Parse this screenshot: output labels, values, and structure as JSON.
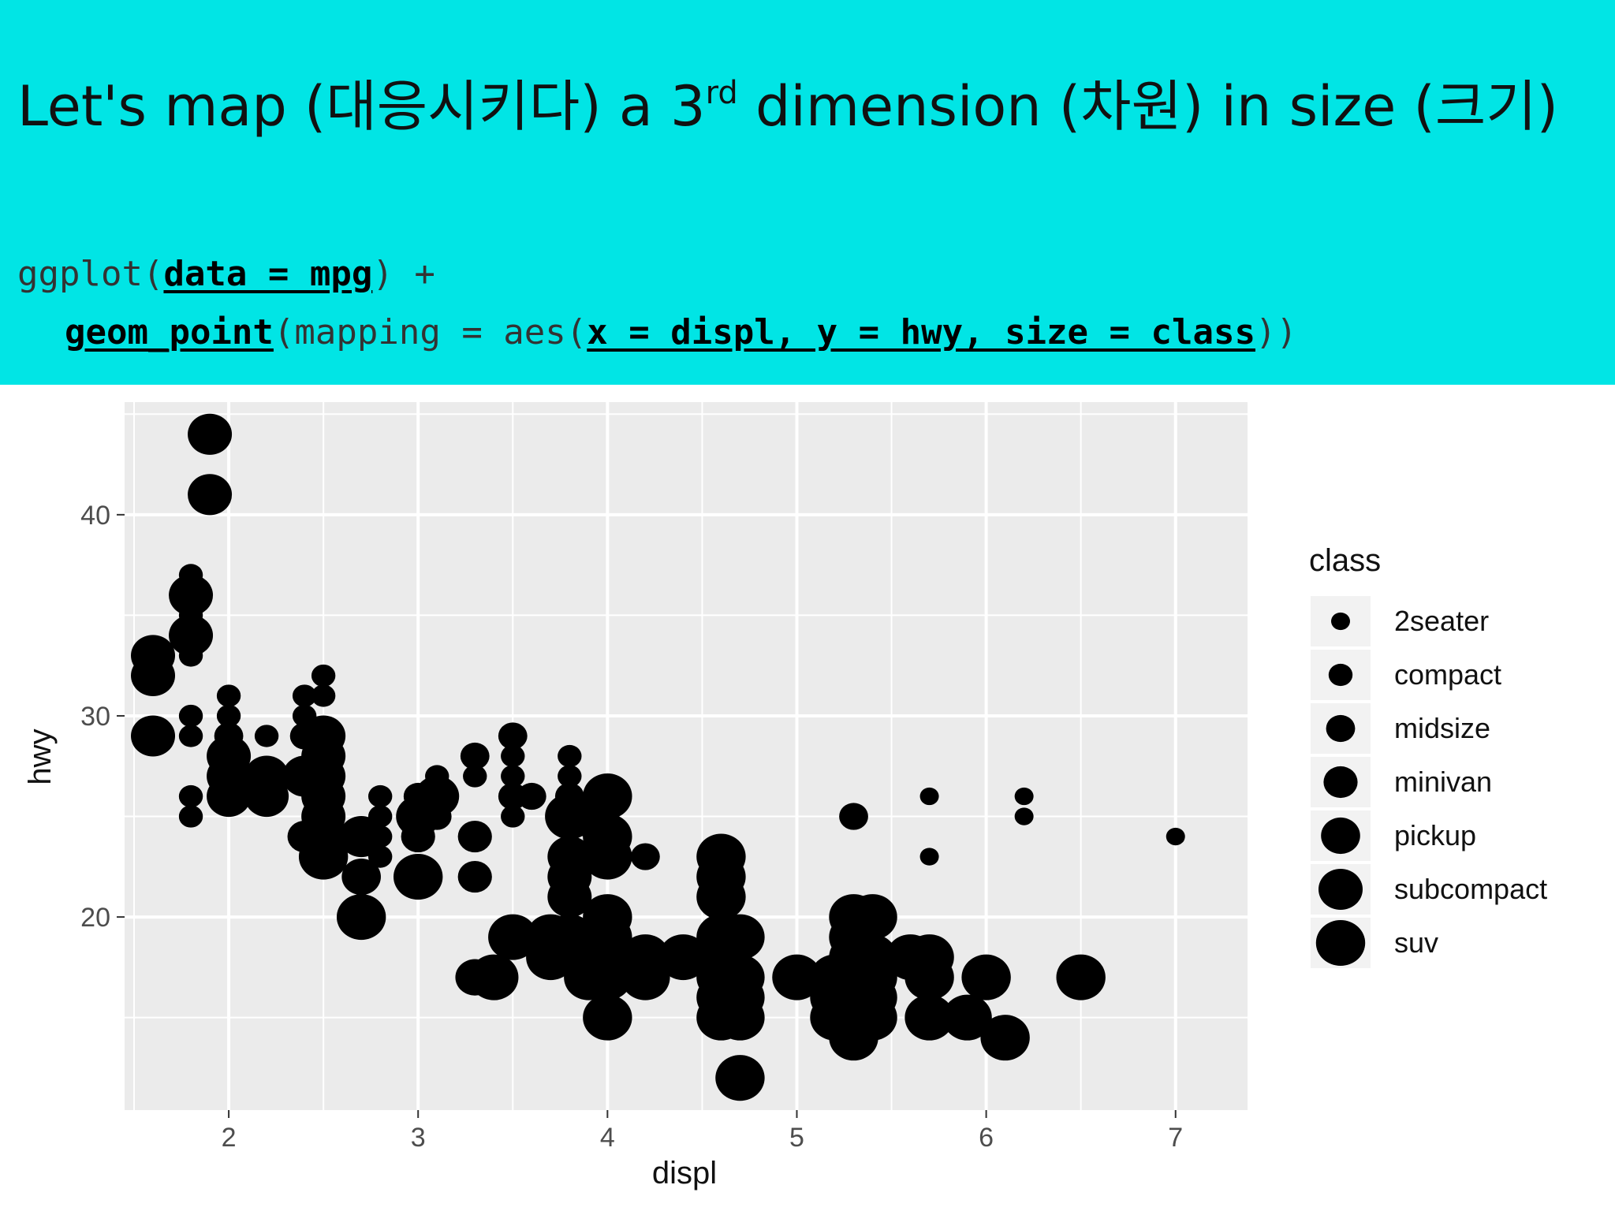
{
  "slide": {
    "title_pre": "Let's map (대응시키다) a 3",
    "title_sup": "rd",
    "title_post": " dimension (차원) in size (크기)",
    "code_line1": {
      "fn": "ggplot",
      "open": "(",
      "arg": "data = mpg",
      "close": ") +"
    },
    "code_line2": {
      "fn": "geom_point",
      "mid": "(mapping = aes(",
      "arg": "x = displ, y = hwy, size = class",
      "close": "))"
    },
    "colors": {
      "header_bg": "#01e5e5",
      "panel_bg": "#ebebeb",
      "point": "#000000"
    }
  },
  "chart_data": {
    "type": "scatter",
    "title": "",
    "xlabel": "displ",
    "ylabel": "hwy",
    "xlim": [
      1.45,
      7.38
    ],
    "ylim": [
      10.4,
      45.6
    ],
    "xticks": [
      2,
      3,
      4,
      5,
      6,
      7
    ],
    "yticks": [
      20,
      30,
      40
    ],
    "x_tick_labels": [
      "2",
      "3",
      "4",
      "5",
      "6",
      "7"
    ],
    "y_tick_labels": [
      "20",
      "30",
      "40"
    ],
    "grid": true,
    "legend": {
      "title": "class",
      "position": "right",
      "categories": [
        "2seater",
        "compact",
        "midsize",
        "minivan",
        "pickup",
        "subcompact",
        "suv"
      ]
    },
    "points": [
      {
        "x": 1.9,
        "y": 44,
        "class": "subcompact"
      },
      {
        "x": 1.9,
        "y": 41,
        "class": "subcompact"
      },
      {
        "x": 1.8,
        "y": 37,
        "class": "compact"
      },
      {
        "x": 1.8,
        "y": 36,
        "class": "subcompact"
      },
      {
        "x": 1.8,
        "y": 35,
        "class": "compact"
      },
      {
        "x": 1.8,
        "y": 34,
        "class": "subcompact"
      },
      {
        "x": 1.8,
        "y": 33,
        "class": "compact"
      },
      {
        "x": 1.6,
        "y": 33,
        "class": "subcompact"
      },
      {
        "x": 1.6,
        "y": 32,
        "class": "subcompact"
      },
      {
        "x": 1.6,
        "y": 29,
        "class": "subcompact"
      },
      {
        "x": 1.8,
        "y": 30,
        "class": "compact"
      },
      {
        "x": 1.8,
        "y": 29,
        "class": "compact"
      },
      {
        "x": 1.8,
        "y": 26,
        "class": "compact"
      },
      {
        "x": 1.8,
        "y": 25,
        "class": "compact"
      },
      {
        "x": 2.0,
        "y": 31,
        "class": "compact"
      },
      {
        "x": 2.0,
        "y": 30,
        "class": "compact"
      },
      {
        "x": 2.0,
        "y": 29,
        "class": "midsize"
      },
      {
        "x": 2.0,
        "y": 28,
        "class": "subcompact"
      },
      {
        "x": 2.0,
        "y": 27,
        "class": "subcompact"
      },
      {
        "x": 2.0,
        "y": 26,
        "class": "subcompact"
      },
      {
        "x": 2.0,
        "y": 28,
        "class": "compact"
      },
      {
        "x": 2.2,
        "y": 29,
        "class": "compact"
      },
      {
        "x": 2.2,
        "y": 27,
        "class": "subcompact"
      },
      {
        "x": 2.2,
        "y": 26,
        "class": "subcompact"
      },
      {
        "x": 2.5,
        "y": 32,
        "class": "compact"
      },
      {
        "x": 2.5,
        "y": 31,
        "class": "compact"
      },
      {
        "x": 2.4,
        "y": 31,
        "class": "compact"
      },
      {
        "x": 2.4,
        "y": 30,
        "class": "compact"
      },
      {
        "x": 2.5,
        "y": 29,
        "class": "subcompact"
      },
      {
        "x": 2.4,
        "y": 29,
        "class": "midsize"
      },
      {
        "x": 2.5,
        "y": 28,
        "class": "subcompact"
      },
      {
        "x": 2.5,
        "y": 27,
        "class": "subcompact"
      },
      {
        "x": 2.4,
        "y": 27,
        "class": "subcompact"
      },
      {
        "x": 2.5,
        "y": 26,
        "class": "subcompact"
      },
      {
        "x": 2.5,
        "y": 25,
        "class": "subcompact"
      },
      {
        "x": 2.4,
        "y": 24,
        "class": "minivan"
      },
      {
        "x": 2.5,
        "y": 24,
        "class": "subcompact"
      },
      {
        "x": 2.5,
        "y": 23,
        "class": "suv"
      },
      {
        "x": 2.7,
        "y": 24,
        "class": "subcompact"
      },
      {
        "x": 2.8,
        "y": 26,
        "class": "compact"
      },
      {
        "x": 2.8,
        "y": 25,
        "class": "compact"
      },
      {
        "x": 2.8,
        "y": 24,
        "class": "compact"
      },
      {
        "x": 2.8,
        "y": 23,
        "class": "compact"
      },
      {
        "x": 2.7,
        "y": 22,
        "class": "pickup"
      },
      {
        "x": 2.7,
        "y": 20,
        "class": "suv"
      },
      {
        "x": 3.0,
        "y": 26,
        "class": "midsize"
      },
      {
        "x": 3.1,
        "y": 27,
        "class": "compact"
      },
      {
        "x": 3.1,
        "y": 26,
        "class": "subcompact"
      },
      {
        "x": 3.0,
        "y": 25,
        "class": "subcompact"
      },
      {
        "x": 3.1,
        "y": 25,
        "class": "midsize"
      },
      {
        "x": 3.0,
        "y": 24,
        "class": "minivan"
      },
      {
        "x": 3.0,
        "y": 22,
        "class": "suv"
      },
      {
        "x": 3.3,
        "y": 28,
        "class": "midsize"
      },
      {
        "x": 3.3,
        "y": 27,
        "class": "compact"
      },
      {
        "x": 3.3,
        "y": 24,
        "class": "minivan"
      },
      {
        "x": 3.3,
        "y": 22,
        "class": "minivan"
      },
      {
        "x": 3.5,
        "y": 29,
        "class": "midsize"
      },
      {
        "x": 3.5,
        "y": 28,
        "class": "compact"
      },
      {
        "x": 3.5,
        "y": 27,
        "class": "compact"
      },
      {
        "x": 3.5,
        "y": 26,
        "class": "midsize"
      },
      {
        "x": 3.6,
        "y": 26,
        "class": "midsize"
      },
      {
        "x": 3.5,
        "y": 25,
        "class": "compact"
      },
      {
        "x": 3.5,
        "y": 19,
        "class": "suv"
      },
      {
        "x": 3.4,
        "y": 17,
        "class": "suv"
      },
      {
        "x": 3.3,
        "y": 17,
        "class": "pickup"
      },
      {
        "x": 3.8,
        "y": 28,
        "class": "compact"
      },
      {
        "x": 3.8,
        "y": 27,
        "class": "compact"
      },
      {
        "x": 3.8,
        "y": 26,
        "class": "midsize"
      },
      {
        "x": 3.8,
        "y": 25,
        "class": "suv"
      },
      {
        "x": 3.9,
        "y": 25,
        "class": "subcompact"
      },
      {
        "x": 3.8,
        "y": 23,
        "class": "subcompact"
      },
      {
        "x": 3.8,
        "y": 22,
        "class": "subcompact"
      },
      {
        "x": 3.8,
        "y": 21,
        "class": "subcompact"
      },
      {
        "x": 3.8,
        "y": 19,
        "class": "suv"
      },
      {
        "x": 3.7,
        "y": 19,
        "class": "suv"
      },
      {
        "x": 3.7,
        "y": 18,
        "class": "suv"
      },
      {
        "x": 4.0,
        "y": 26,
        "class": "suv"
      },
      {
        "x": 4.0,
        "y": 24,
        "class": "suv"
      },
      {
        "x": 4.0,
        "y": 23,
        "class": "suv"
      },
      {
        "x": 4.2,
        "y": 23,
        "class": "midsize"
      },
      {
        "x": 4.0,
        "y": 20,
        "class": "suv"
      },
      {
        "x": 4.0,
        "y": 19,
        "class": "suv"
      },
      {
        "x": 4.0,
        "y": 18,
        "class": "suv"
      },
      {
        "x": 4.0,
        "y": 17,
        "class": "suv"
      },
      {
        "x": 3.9,
        "y": 17,
        "class": "suv"
      },
      {
        "x": 4.2,
        "y": 18,
        "class": "suv"
      },
      {
        "x": 4.2,
        "y": 17,
        "class": "suv"
      },
      {
        "x": 4.0,
        "y": 15,
        "class": "suv"
      },
      {
        "x": 4.4,
        "y": 18,
        "class": "suv"
      },
      {
        "x": 4.6,
        "y": 23,
        "class": "suv"
      },
      {
        "x": 4.6,
        "y": 22,
        "class": "suv"
      },
      {
        "x": 4.6,
        "y": 21,
        "class": "suv"
      },
      {
        "x": 4.6,
        "y": 19,
        "class": "suv"
      },
      {
        "x": 4.7,
        "y": 19,
        "class": "suv"
      },
      {
        "x": 4.6,
        "y": 18,
        "class": "suv"
      },
      {
        "x": 4.7,
        "y": 17,
        "class": "suv"
      },
      {
        "x": 4.6,
        "y": 17,
        "class": "suv"
      },
      {
        "x": 4.6,
        "y": 16,
        "class": "suv"
      },
      {
        "x": 4.7,
        "y": 16,
        "class": "suv"
      },
      {
        "x": 4.6,
        "y": 15,
        "class": "suv"
      },
      {
        "x": 4.7,
        "y": 15,
        "class": "suv"
      },
      {
        "x": 4.7,
        "y": 12,
        "class": "suv"
      },
      {
        "x": 5.0,
        "y": 17,
        "class": "suv"
      },
      {
        "x": 5.2,
        "y": 17,
        "class": "suv"
      },
      {
        "x": 5.2,
        "y": 16,
        "class": "suv"
      },
      {
        "x": 5.2,
        "y": 15,
        "class": "suv"
      },
      {
        "x": 5.3,
        "y": 25,
        "class": "midsize"
      },
      {
        "x": 5.3,
        "y": 20,
        "class": "suv"
      },
      {
        "x": 5.3,
        "y": 19,
        "class": "suv"
      },
      {
        "x": 5.3,
        "y": 18,
        "class": "suv"
      },
      {
        "x": 5.3,
        "y": 17,
        "class": "suv"
      },
      {
        "x": 5.3,
        "y": 16,
        "class": "suv"
      },
      {
        "x": 5.3,
        "y": 15,
        "class": "suv"
      },
      {
        "x": 5.3,
        "y": 14,
        "class": "suv"
      },
      {
        "x": 5.4,
        "y": 20,
        "class": "suv"
      },
      {
        "x": 5.4,
        "y": 18,
        "class": "suv"
      },
      {
        "x": 5.4,
        "y": 17,
        "class": "suv"
      },
      {
        "x": 5.4,
        "y": 16,
        "class": "suv"
      },
      {
        "x": 5.4,
        "y": 15,
        "class": "suv"
      },
      {
        "x": 5.7,
        "y": 26,
        "class": "2seater"
      },
      {
        "x": 5.7,
        "y": 23,
        "class": "2seater"
      },
      {
        "x": 5.7,
        "y": 18,
        "class": "suv"
      },
      {
        "x": 5.6,
        "y": 18,
        "class": "suv"
      },
      {
        "x": 5.7,
        "y": 17,
        "class": "suv"
      },
      {
        "x": 5.7,
        "y": 15,
        "class": "suv"
      },
      {
        "x": 5.9,
        "y": 15,
        "class": "suv"
      },
      {
        "x": 6.0,
        "y": 17,
        "class": "suv"
      },
      {
        "x": 6.1,
        "y": 14,
        "class": "suv"
      },
      {
        "x": 6.2,
        "y": 26,
        "class": "2seater"
      },
      {
        "x": 6.2,
        "y": 25,
        "class": "2seater"
      },
      {
        "x": 6.5,
        "y": 17,
        "class": "suv"
      },
      {
        "x": 7.0,
        "y": 24,
        "class": "2seater"
      }
    ]
  }
}
